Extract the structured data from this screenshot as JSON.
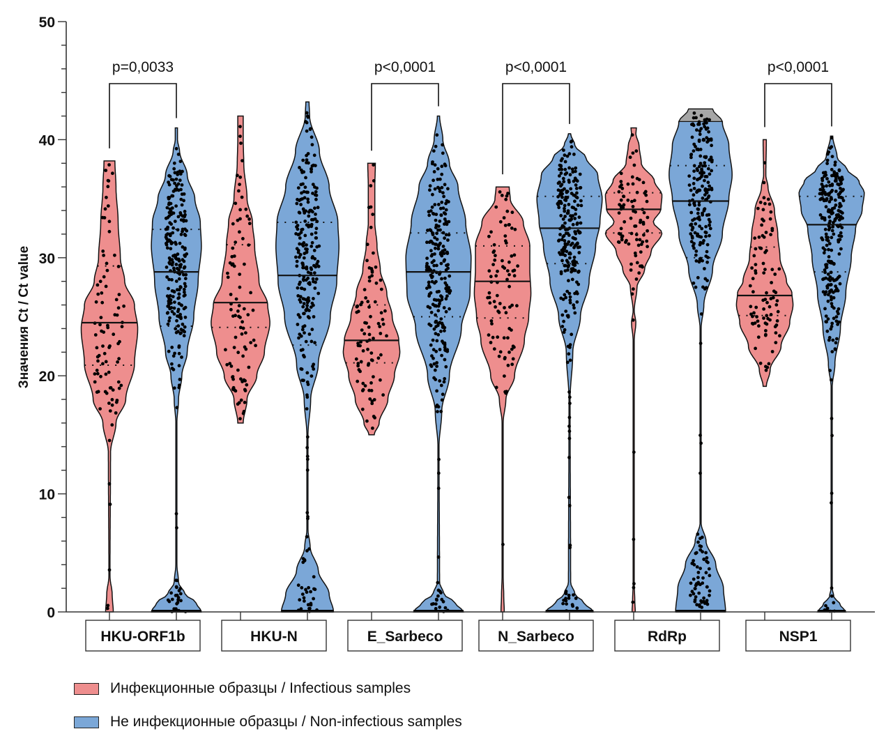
{
  "chart_data": {
    "type": "violin",
    "title": "",
    "ylabel": "Значения Ct / Ct value",
    "xlabel": "",
    "ylim": [
      0,
      50
    ],
    "yticks_major": [
      0,
      10,
      20,
      30,
      40,
      50
    ],
    "ytick_labels": [
      "0",
      "10",
      "20",
      "30",
      "40",
      "50"
    ],
    "yticks_minor_step": 1.5,
    "categories": [
      "HKU-ORF1b",
      "HKU-N",
      "E_Sarbeco",
      "N_Sarbeco",
      "RdRp",
      "NSP1"
    ],
    "legend_position": "bottom-left",
    "series": [
      {
        "name": "Инфекционные образцы / Infectious samples",
        "color": "#EE8E8E",
        "groups": [
          {
            "category": "HKU-ORF1b",
            "median": 24.5,
            "q1": 20.9,
            "q3": 29.3,
            "min": 0,
            "max": 38.2,
            "profile": [
              [
                0,
                0.07
              ],
              [
                1.5,
                0.05
              ],
              [
                3,
                0.01
              ],
              [
                13.5,
                0.02
              ],
              [
                16,
                0.12
              ],
              [
                18,
                0.3
              ],
              [
                21,
                0.46
              ],
              [
                24,
                0.52
              ],
              [
                26,
                0.46
              ],
              [
                28,
                0.28
              ],
              [
                30,
                0.2
              ],
              [
                33,
                0.16
              ],
              [
                36,
                0.12
              ],
              [
                38.2,
                0.1
              ]
            ]
          },
          {
            "category": "HKU-N",
            "median": 26.2,
            "q1": 24.1,
            "q3": 31.1,
            "min": 16,
            "max": 42,
            "profile": [
              [
                16,
                0.05
              ],
              [
                18,
                0.12
              ],
              [
                20,
                0.3
              ],
              [
                22,
                0.44
              ],
              [
                24.5,
                0.54
              ],
              [
                26,
                0.5
              ],
              [
                28,
                0.34
              ],
              [
                31,
                0.26
              ],
              [
                33,
                0.22
              ],
              [
                35,
                0.12
              ],
              [
                38,
                0.06
              ],
              [
                40,
                0.05
              ],
              [
                42,
                0.05
              ]
            ]
          },
          {
            "category": "E_Sarbeco",
            "median": 23.0,
            "q1": 21.1,
            "q3": 26.0,
            "min": 15,
            "max": 38,
            "profile": [
              [
                15,
                0.05
              ],
              [
                16,
                0.14
              ],
              [
                18,
                0.3
              ],
              [
                20,
                0.42
              ],
              [
                22,
                0.52
              ],
              [
                23,
                0.5
              ],
              [
                25,
                0.38
              ],
              [
                27,
                0.28
              ],
              [
                29,
                0.16
              ],
              [
                31,
                0.1
              ],
              [
                33,
                0.06
              ],
              [
                36,
                0.06
              ],
              [
                38,
                0.07
              ]
            ]
          },
          {
            "category": "N_Sarbeco",
            "median": 28.0,
            "q1": 24.9,
            "q3": 31.0,
            "min": 0,
            "max": 36,
            "profile": [
              [
                0,
                0.03
              ],
              [
                1.5,
                0.02
              ],
              [
                3,
                0.01
              ],
              [
                16,
                0.01
              ],
              [
                18,
                0.06
              ],
              [
                20,
                0.22
              ],
              [
                23,
                0.4
              ],
              [
                25,
                0.48
              ],
              [
                27,
                0.52
              ],
              [
                29,
                0.5
              ],
              [
                31,
                0.5
              ],
              [
                33,
                0.38
              ],
              [
                35,
                0.14
              ],
              [
                36,
                0.12
              ]
            ]
          },
          {
            "category": "RdRp",
            "median": 34.1,
            "q1": 32.1,
            "q3": 35.5,
            "min": 0,
            "max": 41,
            "profile": [
              [
                0,
                0.03
              ],
              [
                1,
                0.02
              ],
              [
                2.5,
                0.01
              ],
              [
                23,
                0.01
              ],
              [
                24.5,
                0.04
              ],
              [
                25.5,
                0.01
              ],
              [
                27.5,
                0.06
              ],
              [
                29,
                0.2
              ],
              [
                30.5,
                0.32
              ],
              [
                32.1,
                0.52
              ],
              [
                33,
                0.36
              ],
              [
                34.1,
                0.5
              ],
              [
                35.3,
                0.52
              ],
              [
                36.5,
                0.38
              ],
              [
                38,
                0.14
              ],
              [
                39.5,
                0.1
              ],
              [
                40.5,
                0.04
              ],
              [
                41,
                0.05
              ]
            ]
          },
          {
            "category": "NSP1",
            "median": 26.8,
            "q1": 25.1,
            "q3": 30.9,
            "min": 19.1,
            "max": 40,
            "profile": [
              [
                19.1,
                0.03
              ],
              [
                20.5,
                0.1
              ],
              [
                22.5,
                0.3
              ],
              [
                24.5,
                0.46
              ],
              [
                26,
                0.52
              ],
              [
                27,
                0.5
              ],
              [
                28,
                0.4
              ],
              [
                30,
                0.28
              ],
              [
                32,
                0.24
              ],
              [
                34,
                0.18
              ],
              [
                36,
                0.06
              ],
              [
                37,
                0.02
              ],
              [
                40,
                0.03
              ]
            ]
          }
        ]
      },
      {
        "name": "Не инфекционные образцы / Non-infectious samples",
        "color": "#7BA7D7",
        "cap_color": "#A6A6A6",
        "groups": [
          {
            "category": "HKU-ORF1b",
            "median": 28.8,
            "q1": 24.2,
            "q3": 32.4,
            "min": 0,
            "max": 41,
            "profile": [
              [
                0,
                0.46
              ],
              [
                0.8,
                0.36
              ],
              [
                1.5,
                0.16
              ],
              [
                2.5,
                0.04
              ],
              [
                4,
                0.01
              ],
              [
                16,
                0.01
              ],
              [
                18,
                0.04
              ],
              [
                20,
                0.1
              ],
              [
                22,
                0.2
              ],
              [
                25,
                0.32
              ],
              [
                28,
                0.4
              ],
              [
                31,
                0.46
              ],
              [
                33,
                0.44
              ],
              [
                35,
                0.34
              ],
              [
                37,
                0.2
              ],
              [
                39,
                0.06
              ],
              [
                40,
                0.02
              ],
              [
                41,
                0.02
              ]
            ]
          },
          {
            "category": "HKU-N",
            "median": 28.5,
            "q1": 22.6,
            "q3": 33.0,
            "min": 0,
            "max": 43.2,
            "profile": [
              [
                0,
                0.48
              ],
              [
                1.5,
                0.4
              ],
              [
                3.5,
                0.2
              ],
              [
                5.5,
                0.05
              ],
              [
                7,
                0.01
              ],
              [
                15,
                0.01
              ],
              [
                18,
                0.06
              ],
              [
                21,
                0.2
              ],
              [
                25,
                0.42
              ],
              [
                28,
                0.54
              ],
              [
                31,
                0.58
              ],
              [
                33,
                0.56
              ],
              [
                36,
                0.4
              ],
              [
                39,
                0.22
              ],
              [
                42,
                0.04
              ],
              [
                43.2,
                0.03
              ]
            ]
          },
          {
            "category": "E_Sarbeco",
            "median": 28.8,
            "q1": 25.0,
            "q3": 32.1,
            "min": 0,
            "max": 42,
            "profile": [
              [
                0,
                0.46
              ],
              [
                0.8,
                0.3
              ],
              [
                1.5,
                0.1
              ],
              [
                2.5,
                0.02
              ],
              [
                14,
                0.01
              ],
              [
                17,
                0.06
              ],
              [
                20,
                0.2
              ],
              [
                24,
                0.42
              ],
              [
                27,
                0.58
              ],
              [
                30,
                0.6
              ],
              [
                33,
                0.5
              ],
              [
                36,
                0.36
              ],
              [
                38,
                0.2
              ],
              [
                40,
                0.08
              ],
              [
                42,
                0.02
              ]
            ]
          },
          {
            "category": "N_Sarbeco",
            "median": 32.5,
            "q1": 29.5,
            "q3": 35.2,
            "min": 0,
            "max": 40.5,
            "profile": [
              [
                0,
                0.44
              ],
              [
                0.8,
                0.26
              ],
              [
                1.5,
                0.1
              ],
              [
                2.5,
                0.02
              ],
              [
                18,
                0.01
              ],
              [
                22,
                0.06
              ],
              [
                25,
                0.2
              ],
              [
                28,
                0.36
              ],
              [
                31,
                0.48
              ],
              [
                33,
                0.56
              ],
              [
                35,
                0.6
              ],
              [
                37,
                0.52
              ],
              [
                38.5,
                0.3
              ],
              [
                39.5,
                0.1
              ],
              [
                40.5,
                0.02
              ]
            ]
          },
          {
            "category": "RdRp",
            "median": 34.8,
            "q1": 30.0,
            "q3": 37.8,
            "min": 0,
            "max": 42.6,
            "cap_from": 41.5,
            "profile": [
              [
                0,
                0.46
              ],
              [
                2,
                0.42
              ],
              [
                4,
                0.28
              ],
              [
                6,
                0.1
              ],
              [
                7.5,
                0.01
              ],
              [
                24,
                0.01
              ],
              [
                26,
                0.06
              ],
              [
                29,
                0.22
              ],
              [
                32,
                0.4
              ],
              [
                35,
                0.52
              ],
              [
                37,
                0.58
              ],
              [
                39.5,
                0.52
              ],
              [
                41.5,
                0.4
              ],
              [
                42.6,
                0.22
              ]
            ]
          },
          {
            "category": "NSP1",
            "median": 32.8,
            "q1": 28.8,
            "q3": 35.2,
            "min": 0,
            "max": 40.3,
            "profile": [
              [
                0,
                0.26
              ],
              [
                0.6,
                0.16
              ],
              [
                1.3,
                0.04
              ],
              [
                2,
                0.01
              ],
              [
                19,
                0.01
              ],
              [
                21,
                0.06
              ],
              [
                24,
                0.16
              ],
              [
                27,
                0.26
              ],
              [
                30,
                0.36
              ],
              [
                32.5,
                0.44
              ],
              [
                34,
                0.56
              ],
              [
                35.5,
                0.6
              ],
              [
                36.5,
                0.5
              ],
              [
                37.5,
                0.28
              ],
              [
                38.5,
                0.1
              ],
              [
                40.3,
                0.02
              ]
            ]
          }
        ]
      }
    ],
    "comparisons": [
      {
        "category": "HKU-ORF1b",
        "label": "p=0,0033"
      },
      {
        "category": "E_Sarbeco",
        "label": "p<0,0001"
      },
      {
        "category": "N_Sarbeco",
        "label": "p<0,0001"
      },
      {
        "category": "NSP1",
        "label": "p<0,0001"
      }
    ]
  },
  "legend": {
    "items": [
      {
        "label": "Инфекционные образцы / Infectious samples",
        "color": "#EE8E8E"
      },
      {
        "label": "Не инфекционные образцы / Non-infectious samples",
        "color": "#7BA7D7"
      }
    ]
  }
}
